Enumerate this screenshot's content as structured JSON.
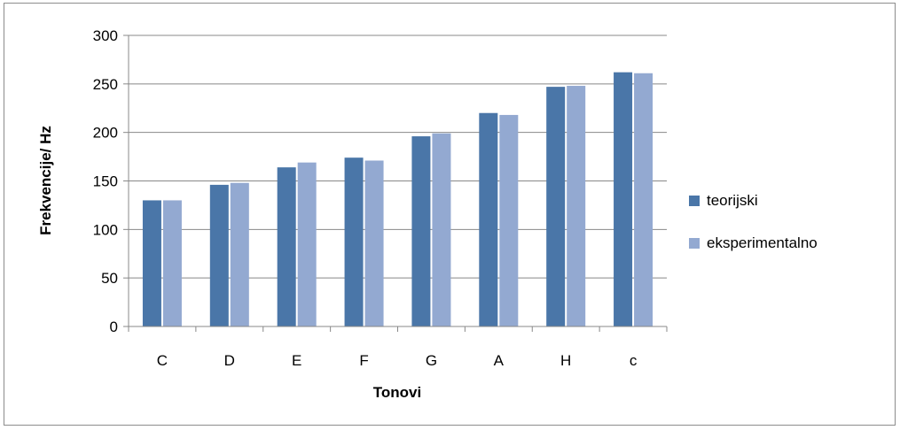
{
  "chart_data": {
    "type": "bar",
    "title": "",
    "xlabel": "Tonovi",
    "ylabel": "Frekvencije/ Hz",
    "categories": [
      "C",
      "D",
      "E",
      "F",
      "G",
      "A",
      "H",
      "c"
    ],
    "series": [
      {
        "name": "teorijski",
        "color": "#4a76a8",
        "values": [
          130,
          146,
          164,
          174,
          196,
          220,
          247,
          262
        ]
      },
      {
        "name": "eksperimentalno",
        "color": "#93a9d1",
        "values": [
          130,
          148,
          169,
          171,
          199,
          218,
          248,
          261
        ]
      }
    ],
    "ylim": [
      0,
      300
    ],
    "yticks": [
      0,
      50,
      100,
      150,
      200,
      250,
      300
    ],
    "grid": true,
    "legend_position": "right"
  }
}
